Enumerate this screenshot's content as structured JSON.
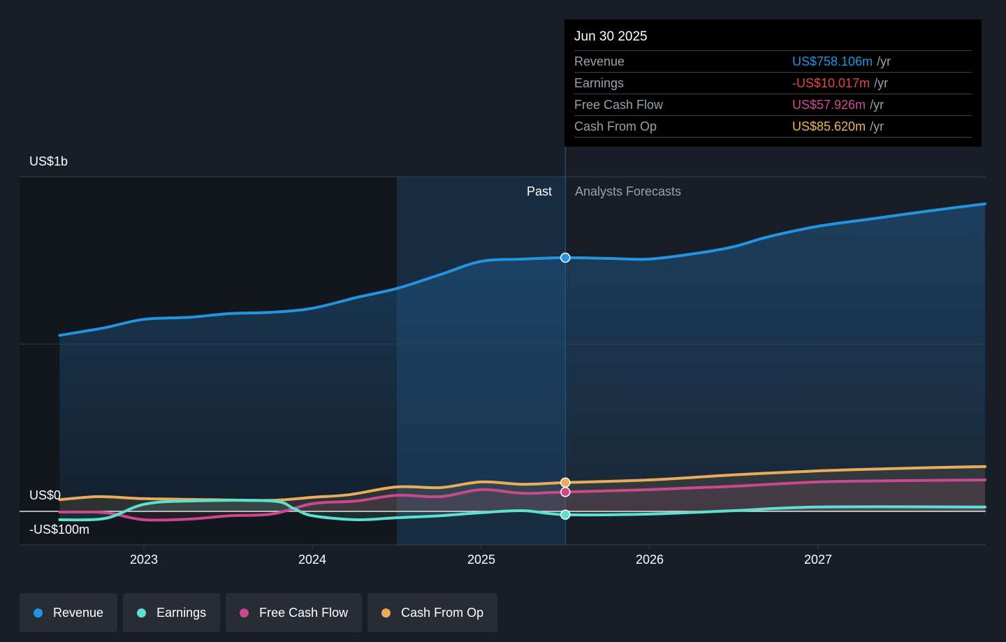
{
  "chart_data": {
    "type": "line",
    "y_unit": "US$ millions",
    "ylim": [
      -100,
      1000
    ],
    "y_tick_labels": [
      {
        "value": 1000,
        "label": "US$1b"
      },
      {
        "value": 0,
        "label": "US$0"
      },
      {
        "value": -100,
        "label": "-US$100m"
      }
    ],
    "x_range": [
      2022.5,
      2028
    ],
    "x_ticks": [
      {
        "value": 2023,
        "label": "2023"
      },
      {
        "value": 2024,
        "label": "2024"
      },
      {
        "value": 2025,
        "label": "2025"
      },
      {
        "value": 2026,
        "label": "2026"
      },
      {
        "value": 2027,
        "label": "2027"
      }
    ],
    "past_label": "Past",
    "forecast_label": "Analysts Forecasts",
    "past_start": 2024.5,
    "divider_x": 2025.5,
    "series": [
      {
        "name": "Revenue",
        "color": "#2394df",
        "fill": true,
        "x": [
          2022.5,
          2022.77,
          2023,
          2023.27,
          2023.51,
          2023.76,
          2024,
          2024.26,
          2024.5,
          2024.76,
          2025,
          2025.25,
          2025.5,
          2025.75,
          2026,
          2026.29,
          2026.5,
          2026.7,
          2027,
          2027.33,
          2027.66,
          2027.99
        ],
        "y": [
          526,
          549,
          574,
          580,
          591,
          595,
          607,
          639,
          666,
          708,
          747,
          754,
          758,
          756,
          754,
          772,
          791,
          820,
          852,
          875,
          898,
          919
        ]
      },
      {
        "name": "Earnings",
        "color": "#5fe0cf",
        "x": [
          2022.5,
          2022.77,
          2023,
          2023.27,
          2023.76,
          2023.89,
          2024,
          2024.26,
          2024.5,
          2024.76,
          2025,
          2025.25,
          2025.5,
          2026,
          2026.5,
          2027,
          2027.99
        ],
        "y": [
          -25,
          -21,
          21,
          31,
          31,
          8,
          -13,
          -25,
          -19,
          -13,
          -4,
          2,
          -10,
          -8,
          2,
          13,
          13
        ]
      },
      {
        "name": "Free Cash Flow",
        "color": "#c94a8c",
        "x": [
          2022.5,
          2022.77,
          2023,
          2023.27,
          2023.51,
          2023.76,
          2024,
          2024.26,
          2024.5,
          2024.76,
          2025,
          2025.25,
          2025.5,
          2026,
          2026.5,
          2027,
          2027.53,
          2027.99
        ],
        "y": [
          -2,
          -4,
          -25,
          -23,
          -13,
          -8,
          23,
          31,
          48,
          44,
          65,
          54,
          58,
          65,
          75,
          88,
          92,
          94
        ]
      },
      {
        "name": "Cash From Op",
        "color": "#e8ac5c",
        "x": [
          2022.5,
          2022.73,
          2023,
          2023.39,
          2023.76,
          2024,
          2024.22,
          2024.5,
          2024.76,
          2025,
          2025.25,
          2025.5,
          2026,
          2026.5,
          2027,
          2027.53,
          2027.99
        ],
        "y": [
          35,
          44,
          38,
          35,
          33,
          42,
          50,
          73,
          71,
          88,
          81,
          86,
          94,
          109,
          121,
          129,
          134
        ]
      }
    ],
    "tooltip": {
      "date": "Jun 30 2025",
      "rows": [
        {
          "label": "Revenue",
          "value": "US$758.106m",
          "unit": "/yr",
          "color": "#2394df"
        },
        {
          "label": "Earnings",
          "value": "-US$10.017m",
          "unit": "/yr",
          "color": "#e84646"
        },
        {
          "label": "Free Cash Flow",
          "value": "US$57.926m",
          "unit": "/yr",
          "color": "#d04b95"
        },
        {
          "label": "Cash From Op",
          "value": "US$85.620m",
          "unit": "/yr",
          "color": "#f0b45a"
        }
      ]
    },
    "legend": [
      {
        "label": "Revenue",
        "color": "#2394df"
      },
      {
        "label": "Earnings",
        "color": "#5fe0cf"
      },
      {
        "label": "Free Cash Flow",
        "color": "#c94a8c"
      },
      {
        "label": "Cash From Op",
        "color": "#e8ac5c"
      }
    ]
  }
}
